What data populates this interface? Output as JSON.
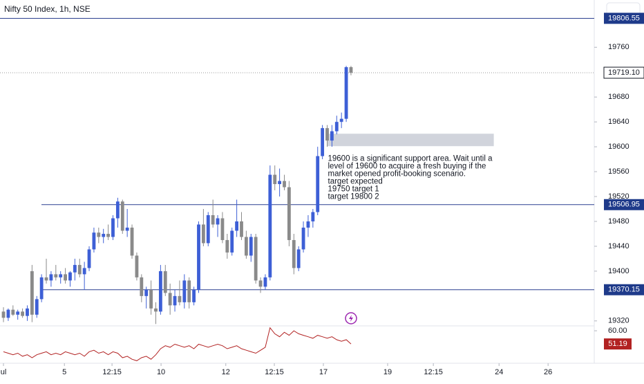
{
  "chart_data": {
    "type": "candlestick",
    "title": "Nifty 50 Index, 1h, NSE",
    "ohlc": [
      [
        19335,
        19342,
        19318,
        19325
      ],
      [
        19325,
        19340,
        19320,
        19338
      ],
      [
        19338,
        19345,
        19328,
        19330
      ],
      [
        19330,
        19338,
        19322,
        19335
      ],
      [
        19335,
        19340,
        19325,
        19328
      ],
      [
        19328,
        19345,
        19320,
        19340
      ],
      [
        19400,
        19410,
        19318,
        19330
      ],
      [
        19330,
        19360,
        19325,
        19355
      ],
      [
        19355,
        19395,
        19350,
        19390
      ],
      [
        19390,
        19420,
        19380,
        19385
      ],
      [
        19385,
        19400,
        19375,
        19395
      ],
      [
        19395,
        19410,
        19385,
        19390
      ],
      [
        19390,
        19400,
        19380,
        19395
      ],
      [
        19395,
        19405,
        19380,
        19385
      ],
      [
        19385,
        19400,
        19375,
        19398
      ],
      [
        19398,
        19420,
        19385,
        19410
      ],
      [
        19410,
        19420,
        19390,
        19395
      ],
      [
        19395,
        19415,
        19370,
        19405
      ],
      [
        19405,
        19440,
        19400,
        19435
      ],
      [
        19435,
        19470,
        19430,
        19462
      ],
      [
        19462,
        19470,
        19445,
        19455
      ],
      [
        19455,
        19468,
        19445,
        19460
      ],
      [
        19460,
        19475,
        19450,
        19455
      ],
      [
        19455,
        19490,
        19450,
        19485
      ],
      [
        19485,
        19518,
        19470,
        19512
      ],
      [
        19512,
        19515,
        19460,
        19465
      ],
      [
        19465,
        19500,
        19455,
        19470
      ],
      [
        19470,
        19475,
        19420,
        19425
      ],
      [
        19425,
        19430,
        19385,
        19390
      ],
      [
        19390,
        19395,
        19350,
        19360
      ],
      [
        19360,
        19375,
        19340,
        19370
      ],
      [
        19370,
        19385,
        19330,
        19340
      ],
      [
        19340,
        19350,
        19315,
        19335
      ],
      [
        19335,
        19410,
        19330,
        19400
      ],
      [
        19400,
        19410,
        19360,
        19365
      ],
      [
        19365,
        19380,
        19330,
        19345
      ],
      [
        19345,
        19370,
        19335,
        19360
      ],
      [
        19360,
        19385,
        19345,
        19350
      ],
      [
        19350,
        19395,
        19340,
        19385
      ],
      [
        19385,
        19390,
        19340,
        19350
      ],
      [
        19350,
        19375,
        19345,
        19370
      ],
      [
        19370,
        19480,
        19365,
        19475
      ],
      [
        19475,
        19500,
        19440,
        19445
      ],
      [
        19445,
        19495,
        19440,
        19490
      ],
      [
        19490,
        19515,
        19470,
        19475
      ],
      [
        19475,
        19490,
        19455,
        19485
      ],
      [
        19485,
        19495,
        19445,
        19450
      ],
      [
        19450,
        19460,
        19420,
        19430
      ],
      [
        19430,
        19470,
        19425,
        19465
      ],
      [
        19465,
        19515,
        19455,
        19480
      ],
      [
        19480,
        19495,
        19450,
        19455
      ],
      [
        19455,
        19465,
        19420,
        19425
      ],
      [
        19425,
        19460,
        19415,
        19455
      ],
      [
        19455,
        19460,
        19380,
        19385
      ],
      [
        19385,
        19390,
        19365,
        19375
      ],
      [
        19375,
        19395,
        19370,
        19390
      ],
      [
        19390,
        19570,
        19385,
        19555
      ],
      [
        19555,
        19570,
        19530,
        19540
      ],
      [
        19540,
        19565,
        19520,
        19545
      ],
      [
        19545,
        19555,
        19530,
        19535
      ],
      [
        19535,
        19545,
        19440,
        19450
      ],
      [
        19450,
        19460,
        19395,
        19405
      ],
      [
        19405,
        19440,
        19400,
        19435
      ],
      [
        19435,
        19480,
        19430,
        19470
      ],
      [
        19470,
        19490,
        19455,
        19480
      ],
      [
        19480,
        19500,
        19470,
        19495
      ],
      [
        19495,
        19600,
        19490,
        19585
      ],
      [
        19585,
        19635,
        19580,
        19630
      ],
      [
        19630,
        19635,
        19600,
        19610
      ],
      [
        19610,
        19635,
        19600,
        19625
      ],
      [
        19625,
        19650,
        19620,
        19640
      ],
      [
        19640,
        19655,
        19630,
        19645
      ],
      [
        19645,
        19730,
        19640,
        19728
      ],
      [
        19728,
        19730,
        19715,
        19719
      ]
    ],
    "up_color": "#3d5fd6",
    "down_color": "#8a8a8a",
    "ylim": [
      19312,
      19836
    ],
    "yticks": [
      19320,
      19400,
      19440,
      19480,
      19520,
      19560,
      19600,
      19640,
      19680,
      19760
    ],
    "xlim": [
      -0.73,
      124.1
    ],
    "xticks": [
      {
        "value": 0,
        "label": "ul"
      },
      {
        "value": 12.8,
        "label": "5"
      },
      {
        "value": 22.8,
        "label": "12:15"
      },
      {
        "value": 33.1,
        "label": "10"
      },
      {
        "value": 46.7,
        "label": "12"
      },
      {
        "value": 56.9,
        "label": "12:15"
      },
      {
        "value": 67.2,
        "label": "17"
      },
      {
        "value": 80.7,
        "label": "19"
      },
      {
        "value": 90.3,
        "label": "12:15"
      },
      {
        "value": 104.1,
        "label": "24"
      },
      {
        "value": 114.4,
        "label": "26"
      }
    ],
    "levels": [
      19806.55,
      19506.95,
      19370.15
    ],
    "last_price": {
      "value": 19719.1,
      "label": "19719.10"
    },
    "zone": {
      "x": [
        68,
        103
      ],
      "y": [
        19601,
        19621
      ]
    },
    "annotation": [
      "19600 is a significant support area. Wait until a",
      "level of 19600 to acquire a fresh buying  if the",
      "market opened  profit-booking scenario.",
      "target expected",
      "19750 target 1",
      "target 19800 2"
    ],
    "indicator": {
      "color": "#b22222",
      "ylim": [
        39.7,
        62.8
      ],
      "yticks": [
        {
          "value": 60,
          "label": "60.00"
        }
      ],
      "values": [
        46,
        45,
        44,
        45,
        43,
        44,
        42,
        44,
        45,
        46,
        44,
        45,
        44,
        46,
        45,
        44,
        45,
        43,
        46,
        47,
        45,
        46,
        44,
        46,
        45,
        42,
        43,
        41,
        40,
        42,
        43,
        41,
        44,
        48,
        50,
        49,
        51,
        50,
        49,
        50,
        48,
        51,
        50,
        49,
        50,
        51,
        50,
        48,
        49,
        50,
        48,
        47,
        46,
        45,
        47,
        49,
        62,
        58,
        56,
        59,
        57,
        60,
        58,
        57,
        56,
        55,
        57,
        56,
        55,
        56,
        54,
        53,
        54,
        51.19
      ]
    }
  }
}
